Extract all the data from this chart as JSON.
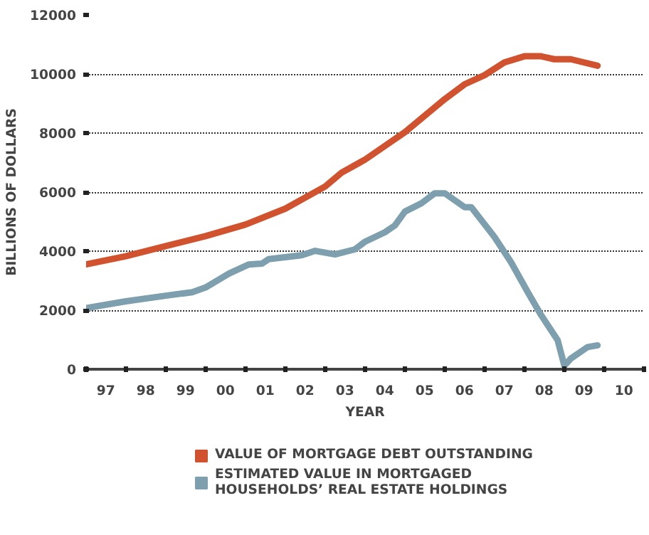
{
  "chart_data": {
    "type": "line",
    "xlabel": "YEAR",
    "ylabel": "BILLIONS OF DOLLARS",
    "xlim": [
      "1997-01-01",
      "2011-01-01"
    ],
    "ylim": [
      0,
      12000
    ],
    "xticks": [
      {
        "value": "1997-01-01",
        "label": null
      },
      {
        "value": "1998-01-01",
        "label": null
      },
      {
        "value": "1999-01-01",
        "label": null
      },
      {
        "value": "2000-01-01",
        "label": null
      },
      {
        "value": "2001-01-01",
        "label": null
      },
      {
        "value": "2002-01-01",
        "label": null
      },
      {
        "value": "2003-01-01",
        "label": null
      },
      {
        "value": "2004-01-01",
        "label": null
      },
      {
        "value": "2005-01-01",
        "label": null
      },
      {
        "value": "2006-01-01",
        "label": null
      },
      {
        "value": "2007-01-01",
        "label": null
      },
      {
        "value": "2008-01-01",
        "label": null
      },
      {
        "value": "2009-01-01",
        "label": null
      },
      {
        "value": "2010-01-01",
        "label": null
      },
      {
        "value": "2011-01-01",
        "label": null
      },
      {
        "value": "1997-07-01",
        "label": "97"
      },
      {
        "value": "1998-07-01",
        "label": "98"
      },
      {
        "value": "1999-07-01",
        "label": "99"
      },
      {
        "value": "2000-07-01",
        "label": "00"
      },
      {
        "value": "2001-07-01",
        "label": "01"
      },
      {
        "value": "2002-07-01",
        "label": "02"
      },
      {
        "value": "2003-07-01",
        "label": "03"
      },
      {
        "value": "2004-07-01",
        "label": "04"
      },
      {
        "value": "2005-07-01",
        "label": "05"
      },
      {
        "value": "2006-07-01",
        "label": "06"
      },
      {
        "value": "2007-07-01",
        "label": "07"
      },
      {
        "value": "2008-07-01",
        "label": "08"
      },
      {
        "value": "2009-07-01",
        "label": "09"
      },
      {
        "value": "2010-07-01",
        "label": "10"
      }
    ],
    "yticks": [
      0,
      2000,
      4000,
      6000,
      8000,
      10000,
      12000
    ],
    "grid": "y",
    "legend": "bottom",
    "line_style": "solid",
    "series": [
      {
        "name": "VALUE OF MORTGAGE DEBT OUTSTANDING",
        "color": "#d0522e",
        "x": [
          "1997-01",
          "1998-01",
          "1999-01",
          "2000-01",
          "2001-01",
          "2002-01",
          "2003-01",
          "2003-06",
          "2004-01",
          "2005-01",
          "2006-01",
          "2006-07",
          "2007-01",
          "2007-07",
          "2008-01",
          "2008-06",
          "2008-10",
          "2009-03",
          "2009-11"
        ],
        "values": [
          3550,
          3830,
          4170,
          4510,
          4900,
          5440,
          6190,
          6660,
          7100,
          8030,
          9150,
          9650,
          9960,
          10390,
          10600,
          10600,
          10500,
          10500,
          10280
        ]
      },
      {
        "name": "ESTIMATED VALUE IN MORTGAGED HOUSEHOLDS’ REAL ESTATE HOLDINGS",
        "color": "#7d9fae",
        "x": [
          "1997-01",
          "1998-01",
          "1999-01",
          "1999-09",
          "2000-01",
          "2000-08",
          "2001-02",
          "2001-06",
          "2001-08",
          "2002-06",
          "2002-10",
          "2003-04",
          "2003-10",
          "2004-01",
          "2004-07",
          "2004-10",
          "2005-01",
          "2005-06",
          "2005-10",
          "2006-01",
          "2006-07",
          "2006-09",
          "2007-04",
          "2007-09",
          "2008-02",
          "2008-06",
          "2008-11",
          "2009-01",
          "2009-03",
          "2009-08",
          "2009-11"
        ],
        "values": [
          2070,
          2300,
          2490,
          2610,
          2770,
          3240,
          3550,
          3580,
          3730,
          3860,
          4010,
          3890,
          4060,
          4320,
          4640,
          4870,
          5340,
          5620,
          5960,
          5960,
          5490,
          5490,
          4480,
          3620,
          2610,
          1840,
          980,
          120,
          360,
          750,
          810
        ]
      }
    ]
  }
}
